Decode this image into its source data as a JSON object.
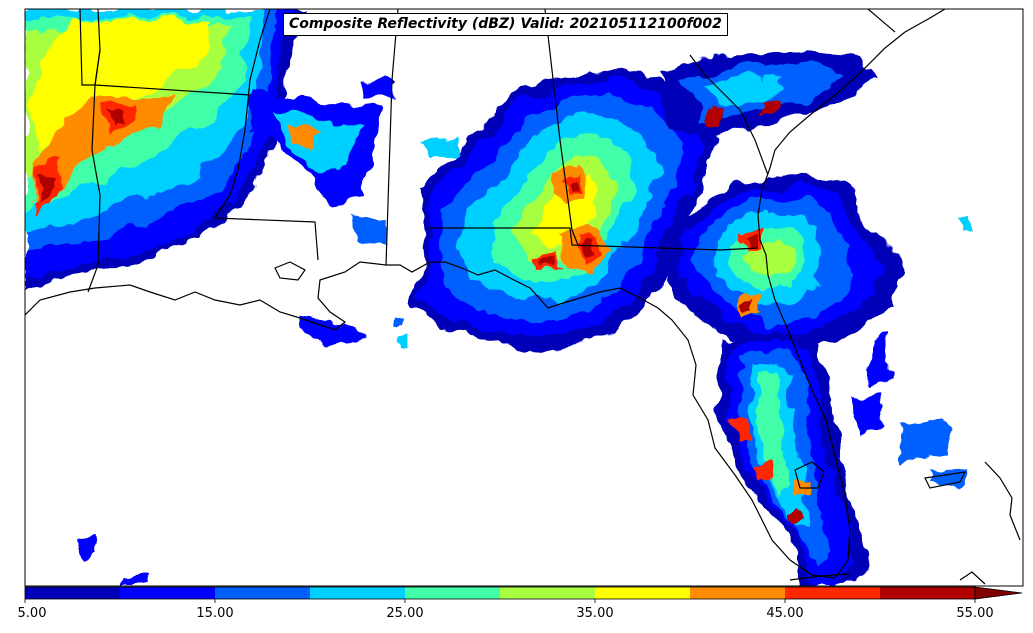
{
  "map": {
    "title": "Composite Reflectivity (dBZ) Valid: 202105112100f002",
    "colors": {
      "ocean": "#ffffff",
      "coastline": "#000000",
      "state_lines": "#000000"
    }
  },
  "colorbar": {
    "ticks": [
      "5.00",
      "15.00",
      "25.00",
      "35.00",
      "45.00",
      "55.00"
    ],
    "colors": [
      "#0000b8",
      "#0000ff",
      "#0060ff",
      "#00d0ff",
      "#40ffa8",
      "#a8ff40",
      "#ffff00",
      "#ff8c00",
      "#ff2800",
      "#b00000"
    ],
    "extend_color": "#800000"
  }
}
